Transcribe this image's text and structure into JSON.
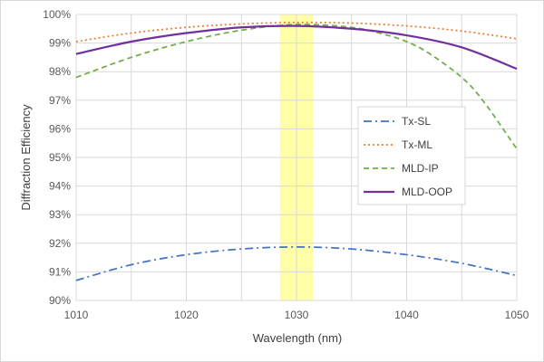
{
  "chart_data": {
    "type": "line",
    "title": "",
    "xlabel": "Wavelength (nm)",
    "ylabel": "Diffraction Efficiency",
    "xlim": [
      1010,
      1050
    ],
    "ylim": [
      90,
      100
    ],
    "x_ticks": [
      1010,
      1020,
      1030,
      1040,
      1050
    ],
    "y_ticks": [
      90,
      91,
      92,
      93,
      94,
      95,
      96,
      97,
      98,
      99,
      100
    ],
    "y_tick_format": "percent",
    "x_minor_step": 5,
    "grid": true,
    "legend_position": "right-center",
    "highlight_band": {
      "x_from": 1028.5,
      "x_to": 1031.5,
      "color": "#ffff99"
    },
    "series": [
      {
        "name": "Tx-SL",
        "color": "#4472c4",
        "style": "dash-dot",
        "x": [
          1010,
          1015,
          1020,
          1025,
          1030,
          1035,
          1040,
          1045,
          1050
        ],
        "y": [
          90.7,
          91.25,
          91.6,
          91.8,
          91.87,
          91.8,
          91.6,
          91.3,
          90.87
        ]
      },
      {
        "name": "Tx-ML",
        "color": "#ed7d31",
        "style": "dotted",
        "x": [
          1010,
          1015,
          1020,
          1025,
          1030,
          1035,
          1040,
          1045,
          1050
        ],
        "y": [
          99.05,
          99.35,
          99.55,
          99.67,
          99.72,
          99.7,
          99.6,
          99.42,
          99.15
        ]
      },
      {
        "name": "MLD-IP",
        "color": "#70ad47",
        "style": "dashed",
        "x": [
          1010,
          1015,
          1020,
          1025,
          1030,
          1035,
          1038,
          1040,
          1042,
          1045,
          1047,
          1050
        ],
        "y": [
          97.8,
          98.5,
          99.05,
          99.45,
          99.65,
          99.55,
          99.3,
          99.05,
          98.65,
          97.8,
          96.95,
          95.3
        ]
      },
      {
        "name": "MLD-OOP",
        "color": "#7030a0",
        "style": "solid",
        "x": [
          1010,
          1015,
          1020,
          1025,
          1030,
          1035,
          1040,
          1045,
          1050
        ],
        "y": [
          98.62,
          99.05,
          99.35,
          99.55,
          99.6,
          99.5,
          99.27,
          98.85,
          98.1
        ]
      }
    ]
  }
}
